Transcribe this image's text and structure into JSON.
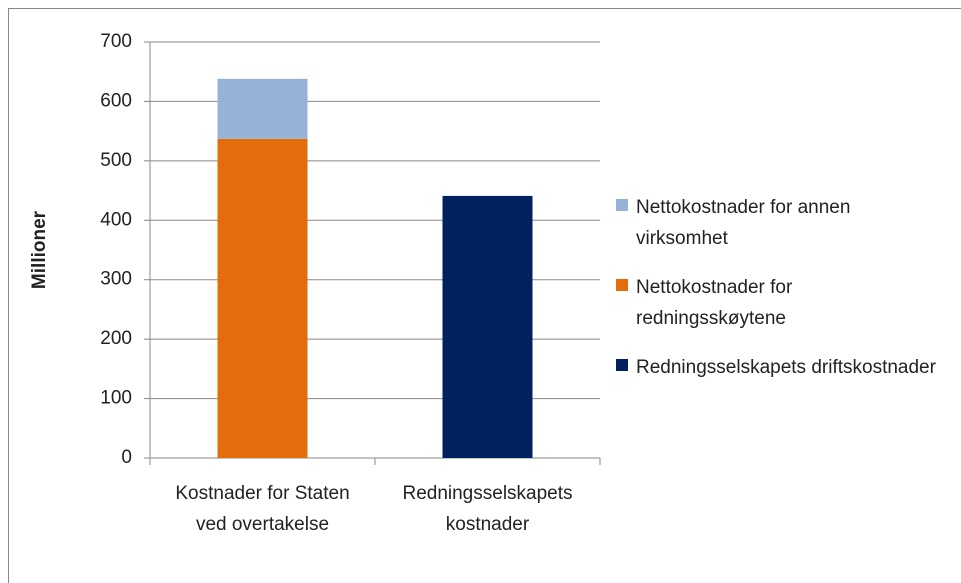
{
  "chart_data": {
    "type": "stacked_bar",
    "y_label": "Millioner",
    "categories": [
      "Kostnader for Staten ved overtakelse",
      "Redningsselskapets kostnader"
    ],
    "series": [
      {
        "name": "Redningsselskapets driftskostnader",
        "color": "#002060",
        "values": [
          null,
          441
        ]
      },
      {
        "name": "Nettokostnader for redningsskøytene",
        "color": "#e46c0a",
        "values": [
          537,
          null
        ]
      },
      {
        "name": "Nettokostnader for annen virksomhet",
        "color": "#95b3d7",
        "values": [
          101,
          null
        ]
      }
    ],
    "legend_order": [
      2,
      1,
      0
    ],
    "ylim": [
      0,
      700
    ],
    "yticks": [
      0,
      100,
      200,
      300,
      400,
      500,
      600,
      700
    ],
    "grid": true,
    "legend": "right"
  }
}
